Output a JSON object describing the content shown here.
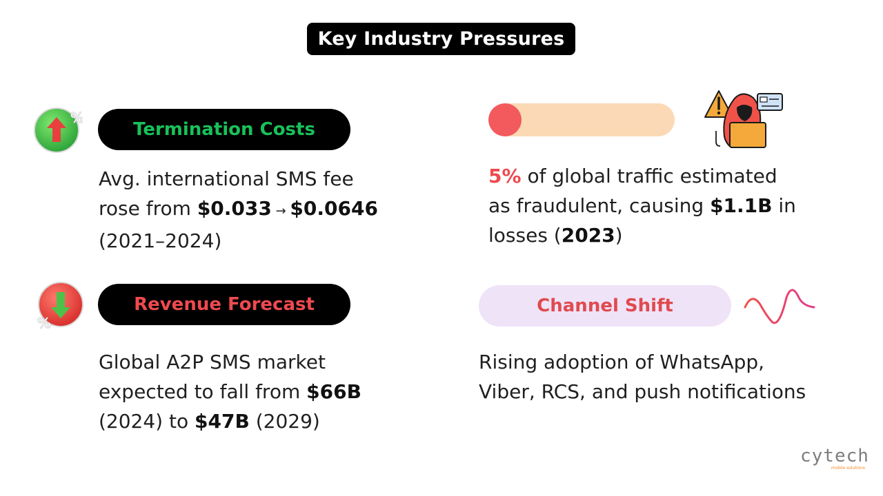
{
  "title": "Key Industry Pressures",
  "cards": {
    "termination": {
      "label": "Termination Costs",
      "line1": "Avg. international SMS fee",
      "line2_prefix": "rose from ",
      "from": "$0.033",
      "arrow": " → ",
      "to": "$0.0646",
      "line3": "(2021–2024)",
      "icon": "percent-up-arrow-icon"
    },
    "fraud": {
      "percent": "5%",
      "line1_rest": " of global traffic estimated",
      "line2_prefix": "as fraudulent, causing ",
      "amount": "$1.1B",
      "line2_suffix": " in",
      "line3_prefix": "losses (",
      "year": "2023",
      "line3_suffix": ")",
      "progress_fraction": 0.05,
      "icon": "hacker-warning-icon"
    },
    "revenue": {
      "label": "Revenue Forecast",
      "line1": "Global A2P SMS market",
      "line2_prefix": "expected to fall from ",
      "from": "$66B",
      "line3_a": "(2024) to ",
      "to": "$47B",
      "line3_b": " (2029)",
      "icon": "percent-down-arrow-icon"
    },
    "channel": {
      "label": "Channel Shift",
      "line1": "Rising adoption of WhatsApp,",
      "line2": "Viber, RCS, and push notifications",
      "icon": "wave-signal-icon"
    }
  },
  "brand": {
    "logo": "cytech",
    "tagline": "mobile solutions"
  },
  "colors": {
    "green": "#19c15a",
    "red": "#ee4a4f",
    "peach": "#fcd9b6",
    "lavender": "#efe3f8"
  }
}
